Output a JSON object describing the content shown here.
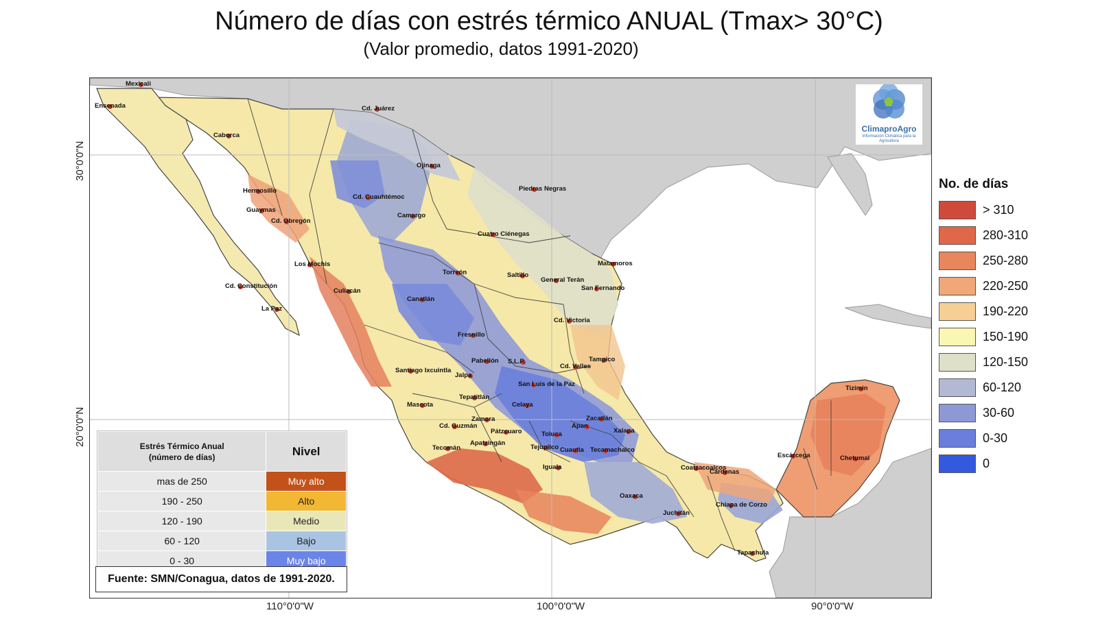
{
  "title": "Número de días con estrés térmico ANUAL (Tmax> 30°C)",
  "subtitle": "(Valor promedio, datos 1991-2020)",
  "lat_labels": [
    "30°0'0\"N",
    "20°0'0\"N"
  ],
  "lon_labels": [
    "110°0'0\"W",
    "100°0'0\"W",
    "90°0'0\"W"
  ],
  "logo": {
    "name": "ClimaproAgro",
    "tagline": "Información Climática para la Agricultura",
    "icon": "flower-logo-icon"
  },
  "legend": {
    "title": "No. de días",
    "items": [
      {
        "label": "> 310",
        "color": "#d04a3c"
      },
      {
        "label": "280-310",
        "color": "#e0674a"
      },
      {
        "label": "250-280",
        "color": "#e8865e"
      },
      {
        "label": "220-250",
        "color": "#f0a878"
      },
      {
        "label": "190-220",
        "color": "#f6cf95"
      },
      {
        "label": "150-190",
        "color": "#fbf7b3"
      },
      {
        "label": "120-150",
        "color": "#dfe0c8"
      },
      {
        "label": "60-120",
        "color": "#b3b9d4"
      },
      {
        "label": "30-60",
        "color": "#8c99d6"
      },
      {
        "label": "0-30",
        "color": "#6a7fdb"
      },
      {
        "label": "0",
        "color": "#3359dc"
      }
    ]
  },
  "inset_table": {
    "header_left": [
      "Estrés Térmico Anual",
      "(número de días)"
    ],
    "header_right": "Nivel",
    "rows": [
      {
        "range": "mas de 250",
        "level": "Muy alto",
        "color": "#c2521a",
        "text_color": "#ffffff"
      },
      {
        "range": "190 - 250",
        "level": "Alto",
        "color": "#f2b733",
        "text_color": "#222222"
      },
      {
        "range": "120 - 190",
        "level": "Medio",
        "color": "#e9e7b8",
        "text_color": "#222222"
      },
      {
        "range": "60 - 120",
        "level": "Bajo",
        "color": "#a9c4e2",
        "text_color": "#222222"
      },
      {
        "range": "0 - 30",
        "level": "Muy bajo",
        "color": "#6b84e8",
        "text_color": "#ffffff"
      }
    ]
  },
  "source": "Fuente: SMN/Conagua, datos de 1991-2020.",
  "cities": [
    "Mexicali",
    "Ensenada",
    "Caborca",
    "Cd. Juárez",
    "Ojinaga",
    "Hermosillo",
    "Cd. Cuauhtémoc",
    "Piedras Negras",
    "Guaymas",
    "Cd. Obregón",
    "Camargo",
    "Cuatro Ciénegas",
    "Los Mochis",
    "Matamoros",
    "Torreón",
    "Saltillo",
    "General Terán",
    "Cd. Constitución",
    "San Fernando",
    "Culiacán",
    "Canatlán",
    "La Paz",
    "Cd. Victoria",
    "Fresnillo",
    "Tampico",
    "Pabellón",
    "S.L.P.",
    "Cd. Valles",
    "Santiago Ixcuintla",
    "Jalpa",
    "San Luis de la Paz",
    "Tepatitlán",
    "Tizimín",
    "Mascota",
    "Celaya",
    "Zamora",
    "Zacatlán",
    "Cd. Guzmán",
    "Pátzcuaro",
    "Toluca",
    "Apan",
    "Xalapa",
    "Tecomán",
    "Apatzingán",
    "Tejupilco",
    "Cuautla",
    "Tecamachalco",
    "Escárcega",
    "Chetumal",
    "Iguala",
    "Coatzacoalcos",
    "Cárdenas",
    "Oaxaca",
    "Chiapa de Corzo",
    "Juchitán",
    "Tapachula"
  ]
}
